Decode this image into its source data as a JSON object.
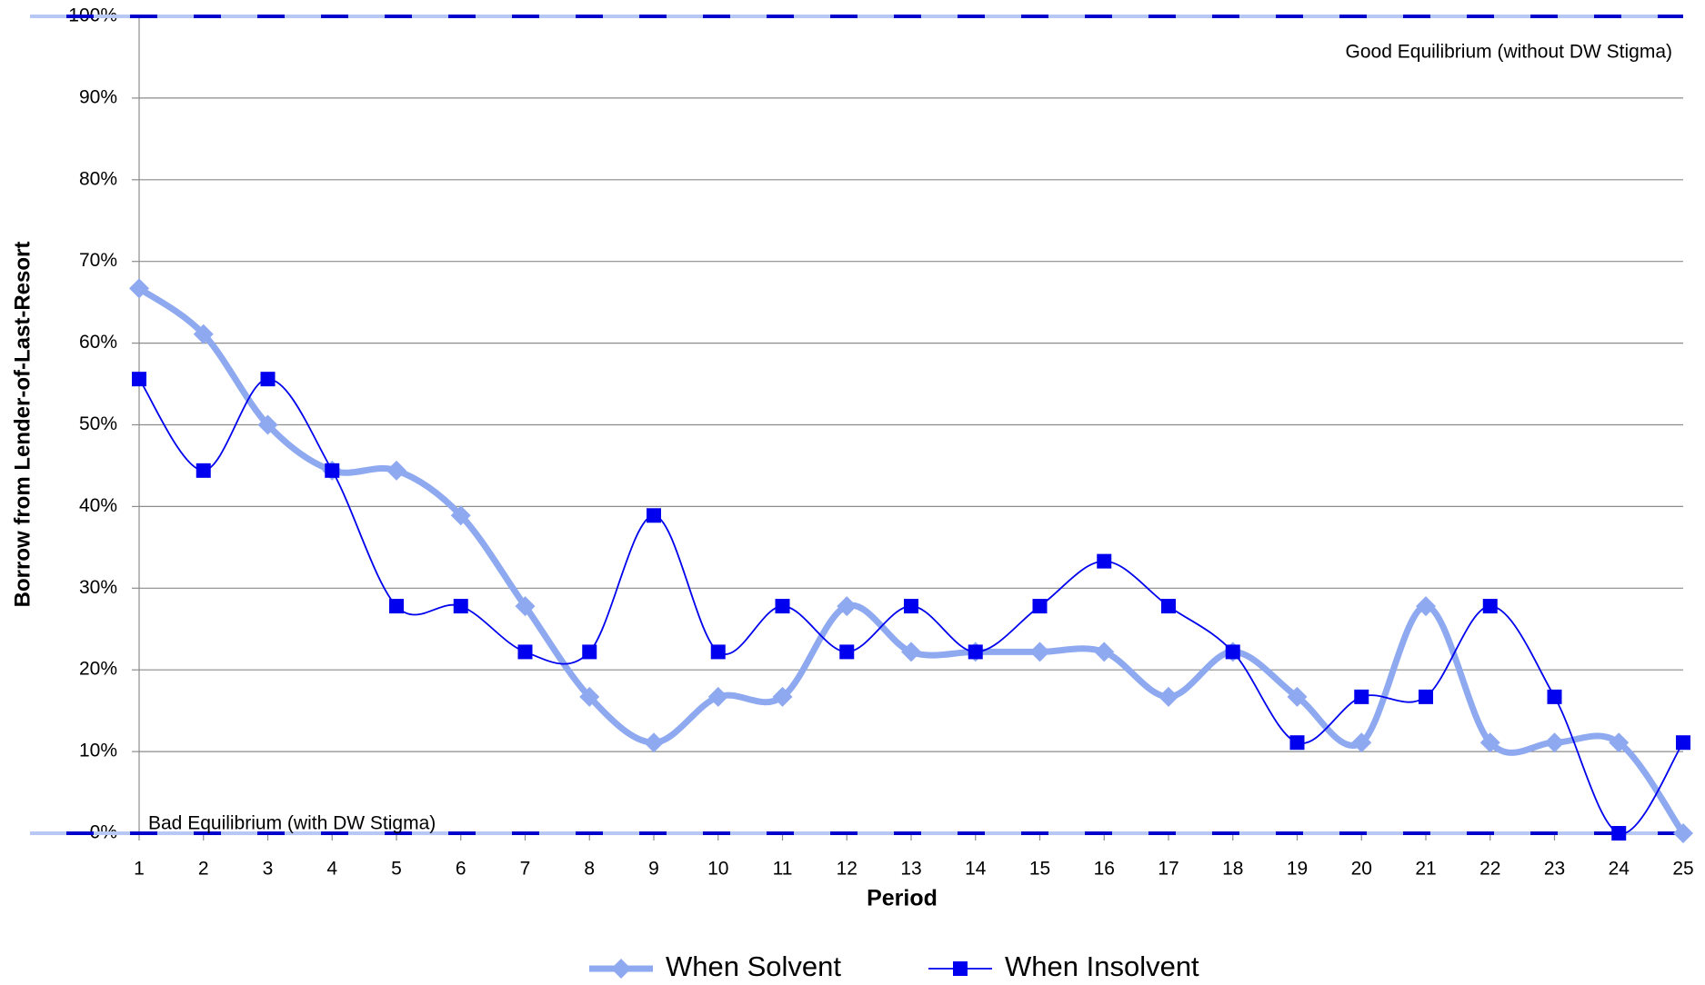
{
  "chart_data": {
    "type": "line",
    "x_label": "Period",
    "y_label": "Borrow from Lender-of-Last-Resort",
    "x": [
      1,
      2,
      3,
      4,
      5,
      6,
      7,
      8,
      9,
      10,
      11,
      12,
      13,
      14,
      15,
      16,
      17,
      18,
      19,
      20,
      21,
      22,
      23,
      24,
      25
    ],
    "xlim": [
      1,
      25
    ],
    "series": [
      {
        "name": "When Solvent",
        "color": "#8ea9f0",
        "marker": "diamond",
        "values": [
          66.7,
          61.1,
          50,
          44.4,
          44.4,
          38.9,
          27.8,
          16.7,
          11.1,
          16.7,
          16.7,
          27.8,
          22.2,
          22.2,
          22.2,
          22.2,
          16.7,
          22.2,
          16.7,
          11.1,
          27.8,
          11.1,
          11.1,
          11.1,
          0
        ]
      },
      {
        "name": "When Insolvent",
        "color": "#0000ee",
        "marker": "square",
        "values": [
          55.6,
          44.4,
          55.6,
          44.4,
          27.8,
          27.8,
          22.2,
          22.2,
          38.9,
          22.2,
          27.8,
          22.2,
          27.8,
          22.2,
          27.8,
          33.3,
          27.8,
          22.2,
          11.1,
          16.7,
          16.7,
          27.8,
          16.7,
          0,
          11.1
        ]
      }
    ],
    "reference_lines": [
      {
        "label": "Good Equilibrium (without DW Stigma)",
        "value": 100
      },
      {
        "label": "Bad Equilibrium (with DW Stigma)",
        "value": 0
      }
    ],
    "ylim": [
      0,
      100
    ],
    "yticks": [
      {
        "value": 0,
        "label": "0%"
      },
      {
        "value": 10,
        "label": "10%"
      },
      {
        "value": 20,
        "label": "20%"
      },
      {
        "value": 30,
        "label": "30%"
      },
      {
        "value": 40,
        "label": "40%"
      },
      {
        "value": 50,
        "label": "50%"
      },
      {
        "value": 60,
        "label": "60%"
      },
      {
        "value": 70,
        "label": "70%"
      },
      {
        "value": 80,
        "label": "80%"
      },
      {
        "value": 90,
        "label": "90%"
      },
      {
        "value": 100,
        "label": "100%"
      }
    ],
    "grid": true,
    "legend": "bottom"
  }
}
